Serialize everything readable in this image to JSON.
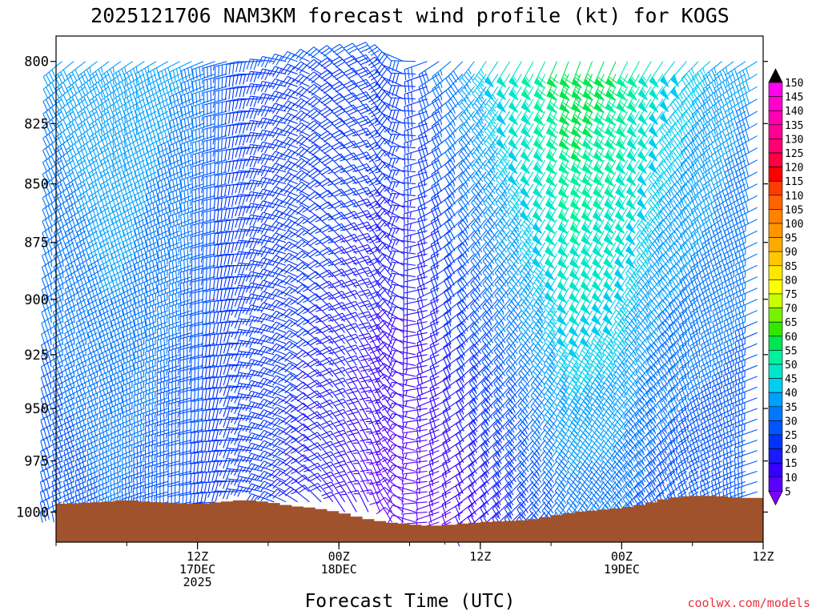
{
  "chart_data": {
    "type": "wind-barb-profile",
    "title": "2025121706 NAM3KM forecast wind profile (kt) for KOGS",
    "xlabel": "Forecast Time (UTC)",
    "ylabel": "",
    "credit": "coolwx.com/models",
    "y_axis": {
      "range": [
        1015,
        790
      ],
      "ticks": [
        800,
        825,
        850,
        875,
        900,
        925,
        950,
        975,
        1000
      ]
    },
    "x_axis": {
      "range_hours": [
        -6,
        54
      ],
      "ticks": [
        {
          "hour": 6,
          "lines": [
            "12Z",
            "17DEC",
            "2025"
          ]
        },
        {
          "hour": 18,
          "lines": [
            "00Z",
            "18DEC"
          ]
        },
        {
          "hour": 30,
          "lines": [
            "12Z"
          ]
        },
        {
          "hour": 42,
          "lines": [
            "00Z",
            "19DEC"
          ]
        },
        {
          "hour": 54,
          "lines": [
            "12Z"
          ]
        }
      ]
    },
    "colorbar": {
      "levels": [
        5,
        10,
        15,
        20,
        25,
        30,
        35,
        40,
        45,
        50,
        55,
        60,
        65,
        70,
        75,
        80,
        85,
        90,
        95,
        100,
        105,
        110,
        115,
        120,
        125,
        130,
        135,
        140,
        145,
        150
      ],
      "colors": [
        "#7f00ff",
        "#5a00ff",
        "#3300ff",
        "#1a1aff",
        "#0033ff",
        "#0055ff",
        "#0077ff",
        "#00a0ff",
        "#00cdf0",
        "#00e6c8",
        "#00f0a0",
        "#00e650",
        "#32e600",
        "#78f000",
        "#c8ff00",
        "#ffff00",
        "#ffe600",
        "#ffc800",
        "#ffaa00",
        "#ff9600",
        "#ff8200",
        "#ff6400",
        "#ff3c00",
        "#ff0000",
        "#ff0040",
        "#ff0070",
        "#ff0090",
        "#ff00b0",
        "#ff00d0",
        "#ff00f0"
      ]
    },
    "terrain": {
      "color": "#a0522d",
      "surface_pressure": [
        [
          -6,
          996
        ],
        [
          -2,
          995
        ],
        [
          0,
          994
        ],
        [
          2,
          995
        ],
        [
          6,
          996
        ],
        [
          8,
          995
        ],
        [
          10,
          994
        ],
        [
          12,
          995
        ],
        [
          14,
          997
        ],
        [
          16,
          998
        ],
        [
          18,
          1000
        ],
        [
          20,
          1003
        ],
        [
          22,
          1005
        ],
        [
          24,
          1006
        ],
        [
          26,
          1007
        ],
        [
          28,
          1006
        ],
        [
          30,
          1005
        ],
        [
          34,
          1004
        ],
        [
          36,
          1002
        ],
        [
          38,
          1000
        ],
        [
          40,
          999
        ],
        [
          42,
          998
        ],
        [
          44,
          996
        ],
        [
          46,
          993
        ],
        [
          48,
          992
        ],
        [
          50,
          992
        ],
        [
          52,
          993
        ],
        [
          54,
          993
        ]
      ]
    },
    "barb_levels": [
      800,
      805,
      810,
      815,
      820,
      825,
      830,
      835,
      840,
      845,
      850,
      855,
      860,
      865,
      870,
      875,
      880,
      885,
      890,
      895,
      900,
      905,
      910,
      915,
      920,
      925,
      930,
      935,
      940,
      945,
      950,
      955,
      960,
      965,
      970,
      975,
      980,
      985,
      990,
      995,
      1000,
      1005
    ],
    "anchors": [
      {
        "hour": -6,
        "dir": 230,
        "spd_top": 40,
        "spd_bot": 30
      },
      {
        "hour": 0,
        "dir": 235,
        "spd_top": 45,
        "spd_bot": 35
      },
      {
        "hour": 6,
        "dir": 245,
        "spd_top": 40,
        "spd_bot": 30
      },
      {
        "hour": 10,
        "dir": 260,
        "spd_top": 30,
        "spd_bot": 25
      },
      {
        "hour": 14,
        "dir": 285,
        "spd_top": 30,
        "spd_bot": 25
      },
      {
        "hour": 18,
        "dir": 310,
        "spd_top": 30,
        "spd_bot": 20
      },
      {
        "hour": 22,
        "dir": 325,
        "spd_top": 30,
        "spd_bot": 12
      },
      {
        "hour": 26,
        "dir": 240,
        "spd_top": 30,
        "spd_bot": 10
      },
      {
        "hour": 30,
        "dir": 215,
        "spd_top": 45,
        "spd_bot": 15
      },
      {
        "hour": 34,
        "dir": 210,
        "spd_top": 55,
        "spd_bot": 25
      },
      {
        "hour": 38,
        "dir": 200,
        "spd_top": 65,
        "spd_bot": 35
      },
      {
        "hour": 42,
        "dir": 205,
        "spd_top": 60,
        "spd_bot": 35
      },
      {
        "hour": 46,
        "dir": 215,
        "spd_top": 50,
        "spd_bot": 30
      },
      {
        "hour": 50,
        "dir": 230,
        "spd_top": 45,
        "spd_bot": 30
      },
      {
        "hour": 54,
        "dir": 240,
        "spd_top": 40,
        "spd_bot": 30
      }
    ],
    "barb_step_hours": 1
  }
}
